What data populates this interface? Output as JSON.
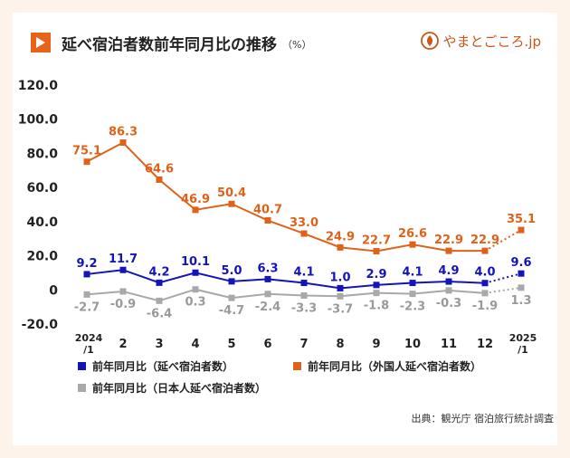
{
  "header": {
    "title": "延べ宿泊者数前年同月比の推移",
    "unit": "（%）",
    "brand": "やまとごころ.jp"
  },
  "source": "出典：観光庁 宿泊旅行統計調査",
  "colors": {
    "background": "#fdf3ea",
    "accent": "#e8621a",
    "series_total": "#1414b8",
    "series_foreign": "#e0621a",
    "series_japanese": "#a9a9a9",
    "label_japanese": "#9a9a9a"
  },
  "chart_data": {
    "type": "line",
    "categories": [
      "2024/1",
      "2",
      "3",
      "4",
      "5",
      "6",
      "7",
      "8",
      "9",
      "10",
      "11",
      "12",
      "2025/1"
    ],
    "ylim": [
      -20,
      120
    ],
    "yticks": [
      120,
      100,
      80,
      60,
      40,
      20,
      0,
      -20
    ],
    "ytick_labels": [
      "120.0",
      "100.0",
      "80.0",
      "60.0",
      "40.0",
      "20.0",
      "0",
      "-20.0"
    ],
    "grid": false,
    "legend_position": "bottom",
    "series": [
      {
        "name": "前年同月比（延べ宿泊者数）",
        "values": [
          9.2,
          11.7,
          4.2,
          10.1,
          5.0,
          6.3,
          4.1,
          1.0,
          2.9,
          4.1,
          4.9,
          4.0,
          9.6
        ],
        "labels": [
          "9.2",
          "11.7",
          "4.2",
          "10.1",
          "5.0",
          "6.3",
          "4.1",
          "1.0",
          "2.9",
          "4.1",
          "4.9",
          "4.0",
          "9.6"
        ]
      },
      {
        "name": "前年同月比（外国人延べ宿泊者数）",
        "values": [
          75.1,
          86.3,
          64.6,
          46.9,
          50.4,
          40.7,
          33.0,
          24.9,
          22.7,
          26.6,
          22.9,
          22.9,
          35.1
        ],
        "labels": [
          "75.1",
          "86.3",
          "64.6",
          "46.9",
          "50.4",
          "40.7",
          "33.0",
          "24.9",
          "22.7",
          "26.6",
          "22.9",
          "22.9",
          "35.1"
        ]
      },
      {
        "name": "前年同月比（日本人延べ宿泊者数）",
        "values": [
          -2.7,
          -0.9,
          -6.4,
          0.3,
          -4.7,
          -2.4,
          -3.3,
          -3.7,
          -1.8,
          -2.3,
          -0.3,
          -1.9,
          1.3
        ],
        "labels": [
          "-2.7",
          "-0.9",
          "-6.4",
          "0.3",
          "-4.7",
          "-2.4",
          "-3.3",
          "-3.7",
          "-1.8",
          "-2.3",
          "-0.3",
          "-1.9",
          "1.3"
        ]
      }
    ]
  }
}
